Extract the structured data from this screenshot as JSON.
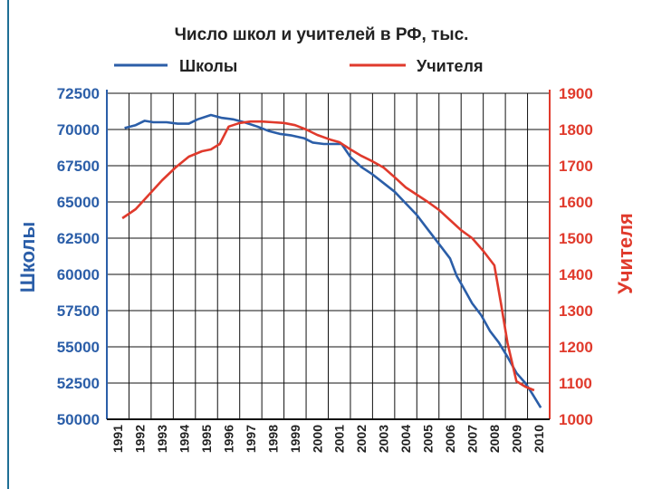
{
  "chart_data": {
    "type": "line",
    "title": "Число школ и учителей в РФ, тыс.",
    "colors": {
      "schools": "#2b5ea8",
      "teachers": "#e03a2c"
    },
    "categories": [
      "1991",
      "1992",
      "1993",
      "1994",
      "1995",
      "1996",
      "1997",
      "1998",
      "1999",
      "2000",
      "2001",
      "2002",
      "2003",
      "2004",
      "2005",
      "2006",
      "2007",
      "2008",
      "2009",
      "2010"
    ],
    "y_left": {
      "label": "Школы",
      "ylim": [
        50000,
        72500
      ],
      "ticks": [
        "72500",
        "70000",
        "67500",
        "65000",
        "62500",
        "60000",
        "57500",
        "55000",
        "52500",
        "50000"
      ],
      "tick_values": [
        72500,
        70000,
        67500,
        65000,
        62500,
        60000,
        57500,
        55000,
        52500,
        50000
      ]
    },
    "y_right": {
      "label": "Учителя",
      "ylim": [
        1000,
        1900
      ],
      "ticks": [
        "1900",
        "1800",
        "1700",
        "1600",
        "1500",
        "1400",
        "1300",
        "1200",
        "1100",
        "1000"
      ],
      "tick_values": [
        1900,
        1800,
        1700,
        1600,
        1500,
        1400,
        1300,
        1200,
        1100,
        1000
      ]
    },
    "grid": true,
    "legend": "top",
    "series": [
      {
        "name": "Школы",
        "axis": "left",
        "x": [
          1991.3,
          1991.8,
          1992.2,
          1992.6,
          1993.2,
          1993.7,
          1994.2,
          1994.6,
          1995.2,
          1995.7,
          1996.2,
          1996.7,
          1997.3,
          1997.8,
          1998.3,
          1998.8,
          1999.4,
          1999.8,
          2000.3,
          2000.8,
          2001.1,
          2001.5,
          2002.0,
          2002.5,
          2003.0,
          2003.5,
          2004.0,
          2004.5,
          2005.0,
          2005.5,
          2006.0,
          2006.3,
          2006.6,
          2007.0,
          2007.4,
          2007.8,
          2008.2,
          2008.6,
          2009.0,
          2009.4,
          2009.7,
          2010.1
        ],
        "values": [
          70100,
          70300,
          70600,
          70500,
          70500,
          70400,
          70400,
          70700,
          71000,
          70800,
          70700,
          70500,
          70200,
          69900,
          69700,
          69600,
          69400,
          69100,
          69000,
          69000,
          69000,
          68100,
          67400,
          66900,
          66300,
          65700,
          64900,
          64100,
          63100,
          62100,
          61100,
          59900,
          59100,
          58000,
          57200,
          56100,
          55300,
          54300,
          53200,
          52500,
          51800,
          50800
        ]
      },
      {
        "name": "Учителя",
        "axis": "right",
        "x": [
          1991.2,
          1991.8,
          1992.4,
          1993.0,
          1993.6,
          1994.2,
          1994.8,
          1995.2,
          1995.6,
          1996.0,
          1996.5,
          1997.0,
          1997.5,
          1998.0,
          1998.5,
          1999.0,
          1999.5,
          2000.0,
          2000.6,
          2001.0,
          2001.5,
          2002.0,
          2002.5,
          2003.0,
          2003.5,
          2004.0,
          2004.5,
          2005.0,
          2005.5,
          2006.0,
          2006.5,
          2007.0,
          2007.5,
          2008.0,
          2008.3,
          2008.6,
          2009.0,
          2009.4,
          2009.8
        ],
        "values": [
          1555,
          1580,
          1620,
          1660,
          1695,
          1725,
          1740,
          1745,
          1760,
          1808,
          1818,
          1822,
          1822,
          1820,
          1818,
          1812,
          1800,
          1785,
          1772,
          1765,
          1745,
          1727,
          1712,
          1695,
          1668,
          1640,
          1620,
          1600,
          1578,
          1550,
          1522,
          1500,
          1465,
          1425,
          1320,
          1210,
          1105,
          1090,
          1080
        ]
      }
    ]
  }
}
